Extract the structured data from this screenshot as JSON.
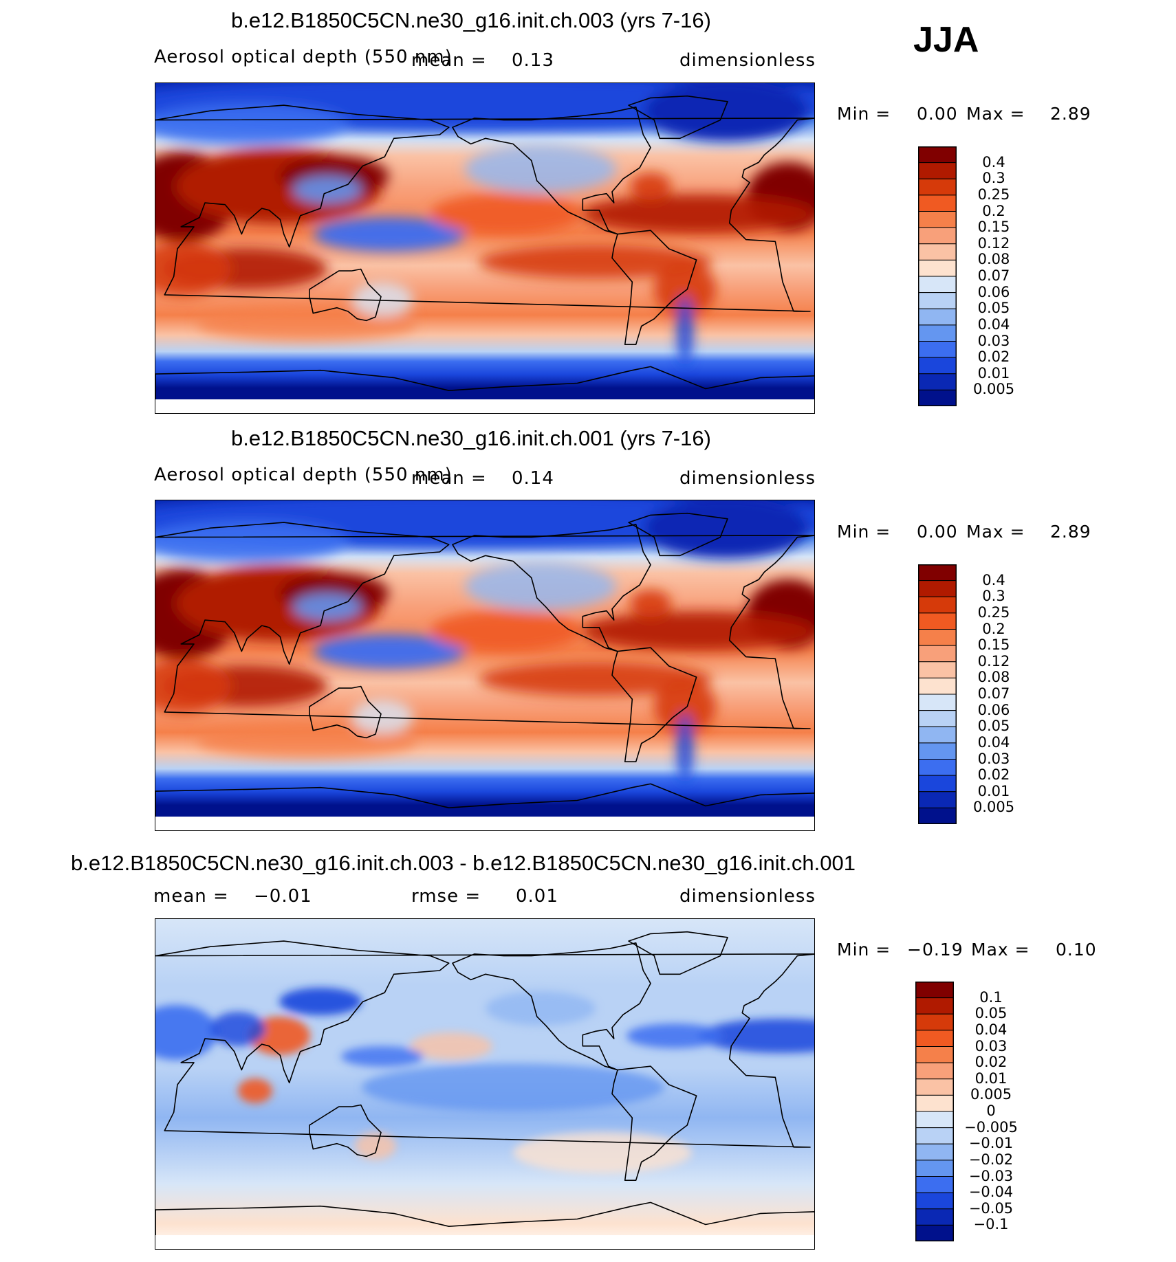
{
  "season": "JJA",
  "panels": [
    {
      "id": "case",
      "title": "b.e12.B1850C5CN.ne30_g16.init.ch.003 (yrs 7-16)",
      "variable": "Aerosol optical depth (550 nm)",
      "mean_label": "mean =",
      "mean_value": "0.13",
      "units": "dimensionless",
      "min_label": "Min =",
      "min_value": "0.00",
      "max_label": "Max =",
      "max_value": "2.89"
    },
    {
      "id": "control",
      "title": "b.e12.B1850C5CN.ne30_g16.init.ch.001 (yrs 7-16)",
      "variable": "Aerosol optical depth (550 nm)",
      "mean_label": "mean =",
      "mean_value": "0.14",
      "units": "dimensionless",
      "min_label": "Min =",
      "min_value": "0.00",
      "max_label": "Max =",
      "max_value": "2.89"
    },
    {
      "id": "difference",
      "title": "b.e12.B1850C5CN.ne30_g16.init.ch.003 - b.e12.B1850C5CN.ne30_g16.init.ch.001",
      "mean_label": "mean =",
      "mean_value": "−0.01",
      "rmse_label": "rmse =",
      "rmse_value": "0.01",
      "units": "dimensionless",
      "min_label": "Min =",
      "min_value": "−0.19",
      "max_label": "Max =",
      "max_value": "0.10"
    }
  ],
  "chart_data": [
    {
      "type": "heatmap",
      "title": "b.e12.B1850C5CN.ne30_g16.init.ch.003 (yrs 7-16)",
      "variable": "Aerosol optical depth (550 nm)",
      "units": "dimensionless",
      "projection": "cylindrical equidistant, centered on dateline",
      "mean": 0.13,
      "min": 0.0,
      "max": 2.89,
      "colorbar_levels": [
        "0.4",
        "0.3",
        "0.25",
        "0.2",
        "0.15",
        "0.12",
        "0.08",
        "0.07",
        "0.06",
        "0.05",
        "0.04",
        "0.03",
        "0.02",
        "0.01",
        "0.005"
      ],
      "colorbar_colors": [
        "#800000",
        "#b01a00",
        "#d63a0a",
        "#f05a22",
        "#f5804a",
        "#f8a07a",
        "#fac2a5",
        "#fde2cf",
        "#d7e6f8",
        "#b9d2f5",
        "#90b6f2",
        "#6496f0",
        "#3c6ef0",
        "#1a46dc",
        "#0a28b4",
        "#00118c"
      ]
    },
    {
      "type": "heatmap",
      "title": "b.e12.B1850C5CN.ne30_g16.init.ch.001 (yrs 7-16)",
      "variable": "Aerosol optical depth (550 nm)",
      "units": "dimensionless",
      "projection": "cylindrical equidistant, centered on dateline",
      "mean": 0.14,
      "min": 0.0,
      "max": 2.89,
      "colorbar_levels": [
        "0.4",
        "0.3",
        "0.25",
        "0.2",
        "0.15",
        "0.12",
        "0.08",
        "0.07",
        "0.06",
        "0.05",
        "0.04",
        "0.03",
        "0.02",
        "0.01",
        "0.005"
      ],
      "colorbar_colors": [
        "#800000",
        "#b01a00",
        "#d63a0a",
        "#f05a22",
        "#f5804a",
        "#f8a07a",
        "#fac2a5",
        "#fde2cf",
        "#d7e6f8",
        "#b9d2f5",
        "#90b6f2",
        "#6496f0",
        "#3c6ef0",
        "#1a46dc",
        "#0a28b4",
        "#00118c"
      ]
    },
    {
      "type": "heatmap",
      "title": "b.e12.B1850C5CN.ne30_g16.init.ch.003 - b.e12.B1850C5CN.ne30_g16.init.ch.001",
      "units": "dimensionless",
      "projection": "cylindrical equidistant, centered on dateline",
      "mean": -0.01,
      "rmse": 0.01,
      "min": -0.19,
      "max": 0.1,
      "colorbar_levels": [
        "0.1",
        "0.05",
        "0.04",
        "0.03",
        "0.02",
        "0.01",
        "0.005",
        "0",
        "−0.005",
        "−0.01",
        "−0.02",
        "−0.03",
        "−0.04",
        "−0.05",
        "−0.1"
      ],
      "colorbar_colors": [
        "#800000",
        "#b01a00",
        "#d63a0a",
        "#f05a22",
        "#f5804a",
        "#f8a07a",
        "#fac2a5",
        "#fde2cf",
        "#d7e6f8",
        "#b9d2f5",
        "#90b6f2",
        "#6496f0",
        "#3c6ef0",
        "#1a46dc",
        "#0a28b4",
        "#00118c"
      ]
    }
  ]
}
